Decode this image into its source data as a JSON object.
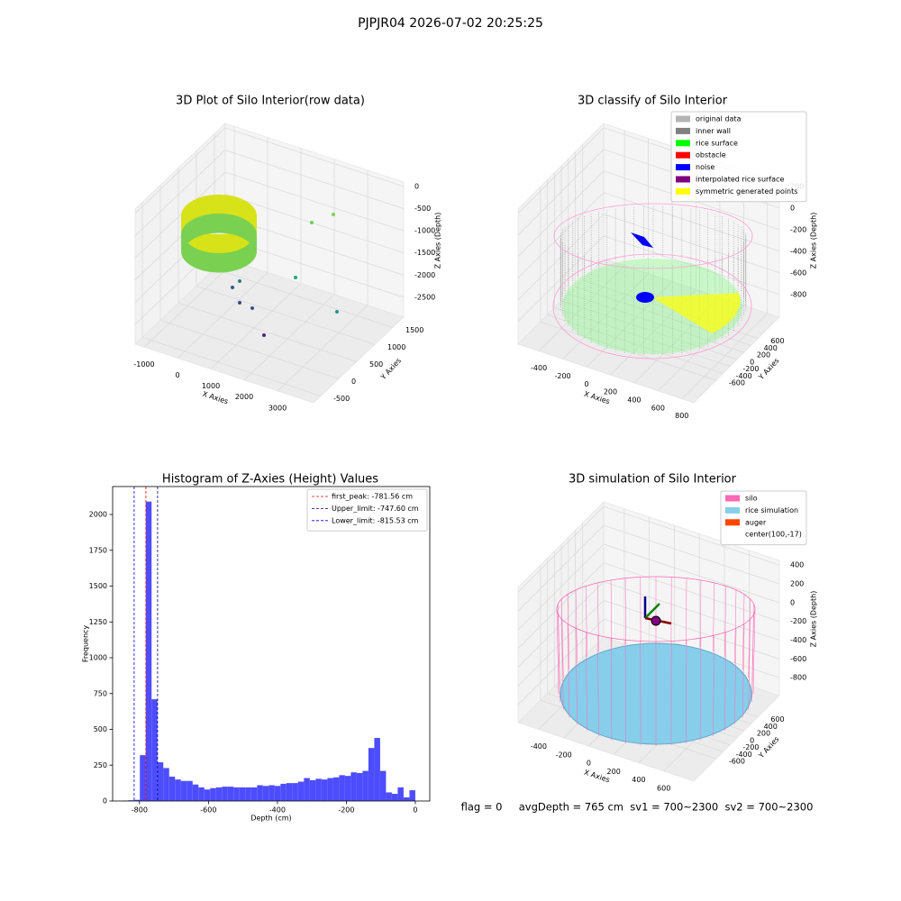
{
  "title": "PJPJR04 2026-07-02 20:25:25",
  "chart_data": [
    {
      "type": "scatter3d",
      "title": "3D Plot of Silo Interior(row data)",
      "xlabel": "X Axies",
      "ylabel": "Y Axies",
      "zlabel": "Z Axies (Depth)",
      "xlim": [
        -1270,
        4080
      ],
      "ylim": [
        -700,
        1800
      ],
      "zlim": [
        -2950,
        100
      ],
      "xticks": [
        -1000,
        0,
        1000,
        2000,
        3000
      ],
      "yticks": [
        -500,
        0,
        500,
        1000,
        1500
      ],
      "zticks": [
        -2500,
        -2000,
        -1500,
        -1000,
        -500,
        0
      ]
    },
    {
      "type": "scatter3d",
      "title": "3D classify of Silo Interior",
      "xlabel": "X Axies",
      "ylabel": "Y Axies",
      "zlabel": "Z Axies (Depth)",
      "xlim": [
        -575,
        900
      ],
      "ylim": [
        -1240,
        1210
      ],
      "zlim": [
        -1010,
        240
      ],
      "xticks": [
        -400,
        -200,
        0,
        200,
        400,
        600,
        800
      ],
      "yticks": [
        -600,
        -400,
        -200,
        0,
        200,
        400,
        600
      ],
      "zticks": [
        -800,
        -600,
        -400,
        -200,
        0,
        200
      ],
      "legend": [
        {
          "name": "original data",
          "color": "#b4b4b4"
        },
        {
          "name": "inner wall",
          "color": "#808080"
        },
        {
          "name": "rice surface",
          "color": "#00ff00"
        },
        {
          "name": "obstacle",
          "color": "#ff0000"
        },
        {
          "name": "noise",
          "color": "#0000ff"
        },
        {
          "name": "interpolated rice surface",
          "color": "#800080"
        },
        {
          "name": "symmetric generated points",
          "color": "#ffff00"
        }
      ]
    },
    {
      "type": "histogram",
      "title": "Histogram of Z-Axies (Height) Values",
      "xlabel": "Depth (cm)",
      "ylabel": "Frequency",
      "color": "#4d4dff",
      "bins": [
        -850,
        -833,
        -816,
        -799,
        -782,
        -765,
        -748,
        -731,
        -714,
        -697,
        -680,
        -663,
        -646,
        -629,
        -612,
        -595,
        -578,
        -561,
        -544,
        -527,
        -510,
        -493,
        -476,
        -459,
        -442,
        -425,
        -408,
        -391,
        -374,
        -357,
        -340,
        -323,
        -306,
        -289,
        -272,
        -255,
        -238,
        -221,
        -204,
        -187,
        -170,
        -153,
        -136,
        -119,
        -102,
        -85,
        -68,
        -51,
        -34,
        -17,
        0
      ],
      "counts": [
        3,
        5,
        8,
        320,
        2090,
        710,
        270,
        230,
        170,
        150,
        140,
        140,
        115,
        95,
        80,
        90,
        95,
        100,
        100,
        95,
        95,
        95,
        95,
        110,
        105,
        110,
        105,
        120,
        125,
        125,
        135,
        160,
        145,
        155,
        150,
        160,
        165,
        180,
        175,
        200,
        195,
        210,
        370,
        440,
        210,
        60,
        50,
        95,
        25,
        75
      ],
      "xlim": [
        -878,
        42
      ],
      "ylim": [
        0,
        2195
      ],
      "xticks": [
        -800,
        -600,
        -400,
        -200,
        0
      ],
      "yticks": [
        0,
        250,
        500,
        750,
        1000,
        1250,
        1500,
        1750,
        2000
      ],
      "vlines": [
        {
          "name": "first_peak: -781.56 cm",
          "value": -781.56,
          "color": "#ff0000"
        },
        {
          "name": "Upper_limit: -747.60 cm",
          "value": -747.6,
          "color": "#000080"
        },
        {
          "name": "Lower_limit: -815.53 cm",
          "value": -815.53,
          "color": "#0000ff"
        }
      ]
    },
    {
      "type": "surface3d",
      "title": "3D simulation of Silo Interior",
      "xlabel": "X Axies",
      "ylabel": "Y Axies",
      "zlabel": "Z Axies (Depth)",
      "xlim": [
        -565,
        840
      ],
      "ylim": [
        -1240,
        1210
      ],
      "zlim": [
        -990,
        450
      ],
      "xticks": [
        -400,
        -200,
        0,
        200,
        400,
        600
      ],
      "yticks": [
        -600,
        -400,
        -200,
        0,
        200,
        400,
        600
      ],
      "zticks": [
        -800,
        -600,
        -400,
        -200,
        0,
        200,
        400
      ],
      "legend": [
        {
          "name": "silo",
          "color": "#ff69b4"
        },
        {
          "name": "rice simulation",
          "color": "#87ceeb"
        },
        {
          "name": "auger",
          "color": "#ff4500"
        },
        {
          "name": "center(100,-17)"
        }
      ]
    }
  ],
  "footer": "flag = 0     avgDepth = 765 cm  sv1 = 700~2300  sv2 = 700~2300"
}
